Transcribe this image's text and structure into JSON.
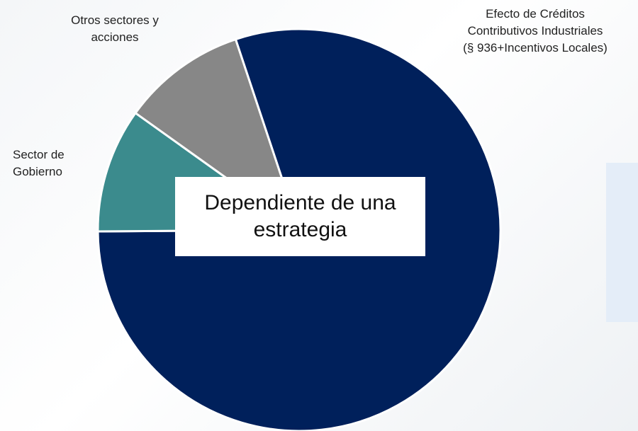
{
  "chart_data": {
    "type": "pie",
    "categories": [
      "Efecto de Créditos\nContributivos Industriales\n(§ 936+Incentivos Locales)",
      "Sector de\nGobierno",
      "Otros sectores y\nacciones"
    ],
    "values": [
      80,
      10,
      10
    ],
    "colors": [
      "#00205b",
      "#3b8b8d",
      "#878787"
    ],
    "annotation": "Dependiente de una\nestrategia"
  }
}
